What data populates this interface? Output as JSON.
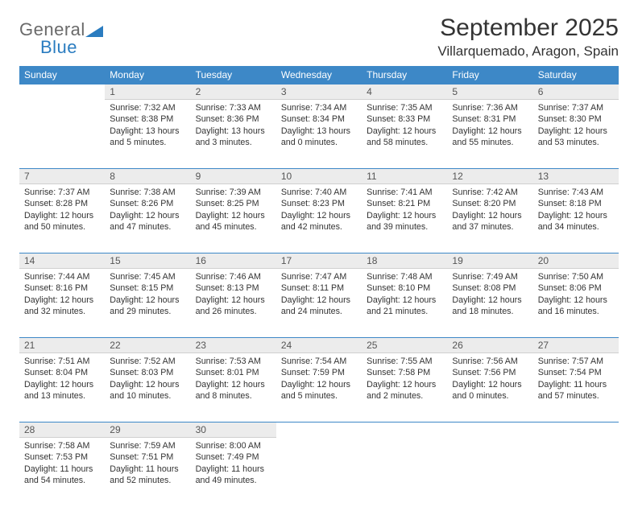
{
  "brand": {
    "name1": "General",
    "name2": "Blue",
    "accent": "#2a7cc0",
    "gray": "#6a6a6a"
  },
  "title": "September 2025",
  "location": "Villarquemado, Aragon, Spain",
  "header_bg": "#3d88c7",
  "daynum_bg": "#ececec",
  "border_color": "#3d88c7",
  "weekdays": [
    "Sunday",
    "Monday",
    "Tuesday",
    "Wednesday",
    "Thursday",
    "Friday",
    "Saturday"
  ],
  "weeks": [
    [
      null,
      {
        "n": "1",
        "sr": "7:32 AM",
        "ss": "8:38 PM",
        "dl": "13 hours and 5 minutes."
      },
      {
        "n": "2",
        "sr": "7:33 AM",
        "ss": "8:36 PM",
        "dl": "13 hours and 3 minutes."
      },
      {
        "n": "3",
        "sr": "7:34 AM",
        "ss": "8:34 PM",
        "dl": "13 hours and 0 minutes."
      },
      {
        "n": "4",
        "sr": "7:35 AM",
        "ss": "8:33 PM",
        "dl": "12 hours and 58 minutes."
      },
      {
        "n": "5",
        "sr": "7:36 AM",
        "ss": "8:31 PM",
        "dl": "12 hours and 55 minutes."
      },
      {
        "n": "6",
        "sr": "7:37 AM",
        "ss": "8:30 PM",
        "dl": "12 hours and 53 minutes."
      }
    ],
    [
      {
        "n": "7",
        "sr": "7:37 AM",
        "ss": "8:28 PM",
        "dl": "12 hours and 50 minutes."
      },
      {
        "n": "8",
        "sr": "7:38 AM",
        "ss": "8:26 PM",
        "dl": "12 hours and 47 minutes."
      },
      {
        "n": "9",
        "sr": "7:39 AM",
        "ss": "8:25 PM",
        "dl": "12 hours and 45 minutes."
      },
      {
        "n": "10",
        "sr": "7:40 AM",
        "ss": "8:23 PM",
        "dl": "12 hours and 42 minutes."
      },
      {
        "n": "11",
        "sr": "7:41 AM",
        "ss": "8:21 PM",
        "dl": "12 hours and 39 minutes."
      },
      {
        "n": "12",
        "sr": "7:42 AM",
        "ss": "8:20 PM",
        "dl": "12 hours and 37 minutes."
      },
      {
        "n": "13",
        "sr": "7:43 AM",
        "ss": "8:18 PM",
        "dl": "12 hours and 34 minutes."
      }
    ],
    [
      {
        "n": "14",
        "sr": "7:44 AM",
        "ss": "8:16 PM",
        "dl": "12 hours and 32 minutes."
      },
      {
        "n": "15",
        "sr": "7:45 AM",
        "ss": "8:15 PM",
        "dl": "12 hours and 29 minutes."
      },
      {
        "n": "16",
        "sr": "7:46 AM",
        "ss": "8:13 PM",
        "dl": "12 hours and 26 minutes."
      },
      {
        "n": "17",
        "sr": "7:47 AM",
        "ss": "8:11 PM",
        "dl": "12 hours and 24 minutes."
      },
      {
        "n": "18",
        "sr": "7:48 AM",
        "ss": "8:10 PM",
        "dl": "12 hours and 21 minutes."
      },
      {
        "n": "19",
        "sr": "7:49 AM",
        "ss": "8:08 PM",
        "dl": "12 hours and 18 minutes."
      },
      {
        "n": "20",
        "sr": "7:50 AM",
        "ss": "8:06 PM",
        "dl": "12 hours and 16 minutes."
      }
    ],
    [
      {
        "n": "21",
        "sr": "7:51 AM",
        "ss": "8:04 PM",
        "dl": "12 hours and 13 minutes."
      },
      {
        "n": "22",
        "sr": "7:52 AM",
        "ss": "8:03 PM",
        "dl": "12 hours and 10 minutes."
      },
      {
        "n": "23",
        "sr": "7:53 AM",
        "ss": "8:01 PM",
        "dl": "12 hours and 8 minutes."
      },
      {
        "n": "24",
        "sr": "7:54 AM",
        "ss": "7:59 PM",
        "dl": "12 hours and 5 minutes."
      },
      {
        "n": "25",
        "sr": "7:55 AM",
        "ss": "7:58 PM",
        "dl": "12 hours and 2 minutes."
      },
      {
        "n": "26",
        "sr": "7:56 AM",
        "ss": "7:56 PM",
        "dl": "12 hours and 0 minutes."
      },
      {
        "n": "27",
        "sr": "7:57 AM",
        "ss": "7:54 PM",
        "dl": "11 hours and 57 minutes."
      }
    ],
    [
      {
        "n": "28",
        "sr": "7:58 AM",
        "ss": "7:53 PM",
        "dl": "11 hours and 54 minutes."
      },
      {
        "n": "29",
        "sr": "7:59 AM",
        "ss": "7:51 PM",
        "dl": "11 hours and 52 minutes."
      },
      {
        "n": "30",
        "sr": "8:00 AM",
        "ss": "7:49 PM",
        "dl": "11 hours and 49 minutes."
      },
      null,
      null,
      null,
      null
    ]
  ],
  "labels": {
    "sunrise": "Sunrise:",
    "sunset": "Sunset:",
    "daylight": "Daylight:"
  }
}
